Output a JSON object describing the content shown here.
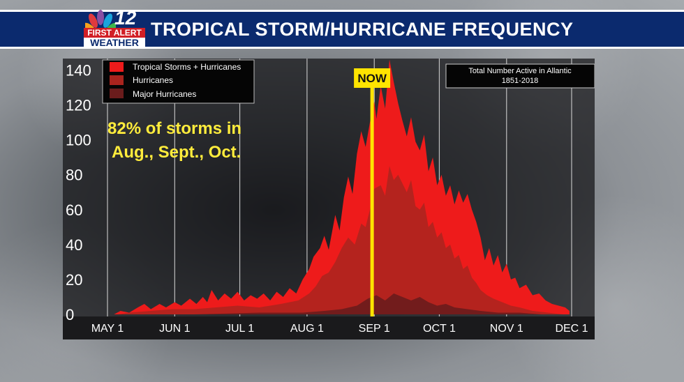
{
  "banner": {
    "title": "TROPICAL STORM/HURRICANE FREQUENCY",
    "logo_number": "12",
    "logo_line1": "FIRST ALERT",
    "logo_line2": "WEATHER"
  },
  "callout": {
    "line1": "82% of storms in",
    "line2": "Aug., Sept., Oct."
  },
  "info_box": {
    "line1": "Total Number Active in Allantic",
    "line2": "1851-2018"
  },
  "now_marker": {
    "label": "NOW",
    "day": 122
  },
  "colors": {
    "tropical": "#ee1b1b",
    "hurricanes": "#a9241e",
    "major": "#6a1c1c",
    "now_line": "#ffe400",
    "callout_text": "#ffec3c",
    "banner": "#0b2a6e"
  },
  "chart_data": {
    "type": "area",
    "x_unit": "day of season starting May 1",
    "xlim": [
      0,
      214
    ],
    "ylim": [
      0,
      145
    ],
    "x_ticks": [
      {
        "day": 0,
        "label": "MAY 1"
      },
      {
        "day": 31,
        "label": "JUN 1"
      },
      {
        "day": 61,
        "label": "JUL 1"
      },
      {
        "day": 92,
        "label": "AUG 1"
      },
      {
        "day": 123,
        "label": "SEP 1"
      },
      {
        "day": 153,
        "label": "OCT 1"
      },
      {
        "day": 184,
        "label": "NOV 1"
      },
      {
        "day": 214,
        "label": "DEC 1"
      }
    ],
    "y_ticks": [
      0,
      20,
      40,
      60,
      80,
      100,
      120,
      140
    ],
    "grid": "vertical",
    "legend": "top-left",
    "series": [
      {
        "name": "Tropical Storms + Hurricanes",
        "points": [
          [
            3,
            0
          ],
          [
            6,
            2
          ],
          [
            10,
            1
          ],
          [
            14,
            4
          ],
          [
            17,
            6
          ],
          [
            20,
            3
          ],
          [
            24,
            6
          ],
          [
            27,
            4
          ],
          [
            31,
            7
          ],
          [
            34,
            5
          ],
          [
            38,
            9
          ],
          [
            41,
            6
          ],
          [
            44,
            10
          ],
          [
            46,
            7
          ],
          [
            48,
            14
          ],
          [
            51,
            8
          ],
          [
            54,
            12
          ],
          [
            57,
            9
          ],
          [
            60,
            13
          ],
          [
            63,
            8
          ],
          [
            66,
            11
          ],
          [
            69,
            9
          ],
          [
            72,
            12
          ],
          [
            75,
            8
          ],
          [
            78,
            13
          ],
          [
            81,
            10
          ],
          [
            84,
            15
          ],
          [
            87,
            12
          ],
          [
            90,
            20
          ],
          [
            93,
            26
          ],
          [
            95,
            33
          ],
          [
            98,
            38
          ],
          [
            100,
            45
          ],
          [
            102,
            37
          ],
          [
            105,
            57
          ],
          [
            107,
            48
          ],
          [
            109,
            67
          ],
          [
            111,
            79
          ],
          [
            113,
            69
          ],
          [
            115,
            92
          ],
          [
            117,
            105
          ],
          [
            119,
            96
          ],
          [
            121,
            110
          ],
          [
            123,
            122
          ],
          [
            124,
            112
          ],
          [
            126,
            131
          ],
          [
            128,
            118
          ],
          [
            130,
            146
          ],
          [
            132,
            133
          ],
          [
            134,
            121
          ],
          [
            136,
            111
          ],
          [
            138,
            102
          ],
          [
            140,
            113
          ],
          [
            142,
            99
          ],
          [
            144,
            94
          ],
          [
            146,
            103
          ],
          [
            148,
            82
          ],
          [
            150,
            90
          ],
          [
            152,
            74
          ],
          [
            154,
            80
          ],
          [
            156,
            68
          ],
          [
            158,
            74
          ],
          [
            160,
            63
          ],
          [
            162,
            71
          ],
          [
            164,
            64
          ],
          [
            166,
            69
          ],
          [
            168,
            60
          ],
          [
            170,
            53
          ],
          [
            172,
            44
          ],
          [
            174,
            31
          ],
          [
            176,
            38
          ],
          [
            178,
            28
          ],
          [
            180,
            34
          ],
          [
            182,
            24
          ],
          [
            184,
            29
          ],
          [
            186,
            20
          ],
          [
            188,
            21
          ],
          [
            190,
            15
          ],
          [
            193,
            17
          ],
          [
            196,
            11
          ],
          [
            199,
            12
          ],
          [
            202,
            8
          ],
          [
            205,
            6
          ],
          [
            208,
            5
          ],
          [
            211,
            4
          ],
          [
            213,
            2
          ]
        ]
      },
      {
        "name": "Hurricanes",
        "points": [
          [
            5,
            0
          ],
          [
            10,
            1
          ],
          [
            20,
            2
          ],
          [
            30,
            3
          ],
          [
            40,
            3
          ],
          [
            50,
            4
          ],
          [
            60,
            5
          ],
          [
            70,
            4
          ],
          [
            80,
            6
          ],
          [
            88,
            8
          ],
          [
            93,
            12
          ],
          [
            96,
            16
          ],
          [
            99,
            22
          ],
          [
            102,
            24
          ],
          [
            105,
            30
          ],
          [
            108,
            38
          ],
          [
            111,
            44
          ],
          [
            114,
            40
          ],
          [
            117,
            52
          ],
          [
            119,
            50
          ],
          [
            121,
            60
          ],
          [
            123,
            72
          ],
          [
            126,
            74
          ],
          [
            128,
            68
          ],
          [
            130,
            85
          ],
          [
            132,
            77
          ],
          [
            134,
            80
          ],
          [
            136,
            75
          ],
          [
            138,
            70
          ],
          [
            140,
            77
          ],
          [
            142,
            62
          ],
          [
            144,
            60
          ],
          [
            146,
            64
          ],
          [
            148,
            50
          ],
          [
            150,
            53
          ],
          [
            152,
            44
          ],
          [
            154,
            47
          ],
          [
            156,
            38
          ],
          [
            158,
            40
          ],
          [
            160,
            32
          ],
          [
            162,
            34
          ],
          [
            164,
            26
          ],
          [
            166,
            28
          ],
          [
            168,
            21
          ],
          [
            170,
            18
          ],
          [
            172,
            14
          ],
          [
            175,
            11
          ],
          [
            178,
            9
          ],
          [
            182,
            7
          ],
          [
            186,
            5
          ],
          [
            190,
            4
          ],
          [
            196,
            2
          ],
          [
            203,
            1
          ],
          [
            210,
            0
          ]
        ]
      },
      {
        "name": "Major Hurricanes",
        "points": [
          [
            40,
            0
          ],
          [
            70,
            1
          ],
          [
            90,
            1
          ],
          [
            100,
            2
          ],
          [
            108,
            3
          ],
          [
            115,
            5
          ],
          [
            120,
            9
          ],
          [
            124,
            11
          ],
          [
            128,
            8
          ],
          [
            132,
            12
          ],
          [
            136,
            10
          ],
          [
            140,
            8
          ],
          [
            144,
            10
          ],
          [
            148,
            7
          ],
          [
            152,
            5
          ],
          [
            156,
            6
          ],
          [
            160,
            4
          ],
          [
            166,
            3
          ],
          [
            172,
            2
          ],
          [
            180,
            1
          ],
          [
            190,
            1
          ],
          [
            200,
            0
          ]
        ]
      }
    ]
  }
}
